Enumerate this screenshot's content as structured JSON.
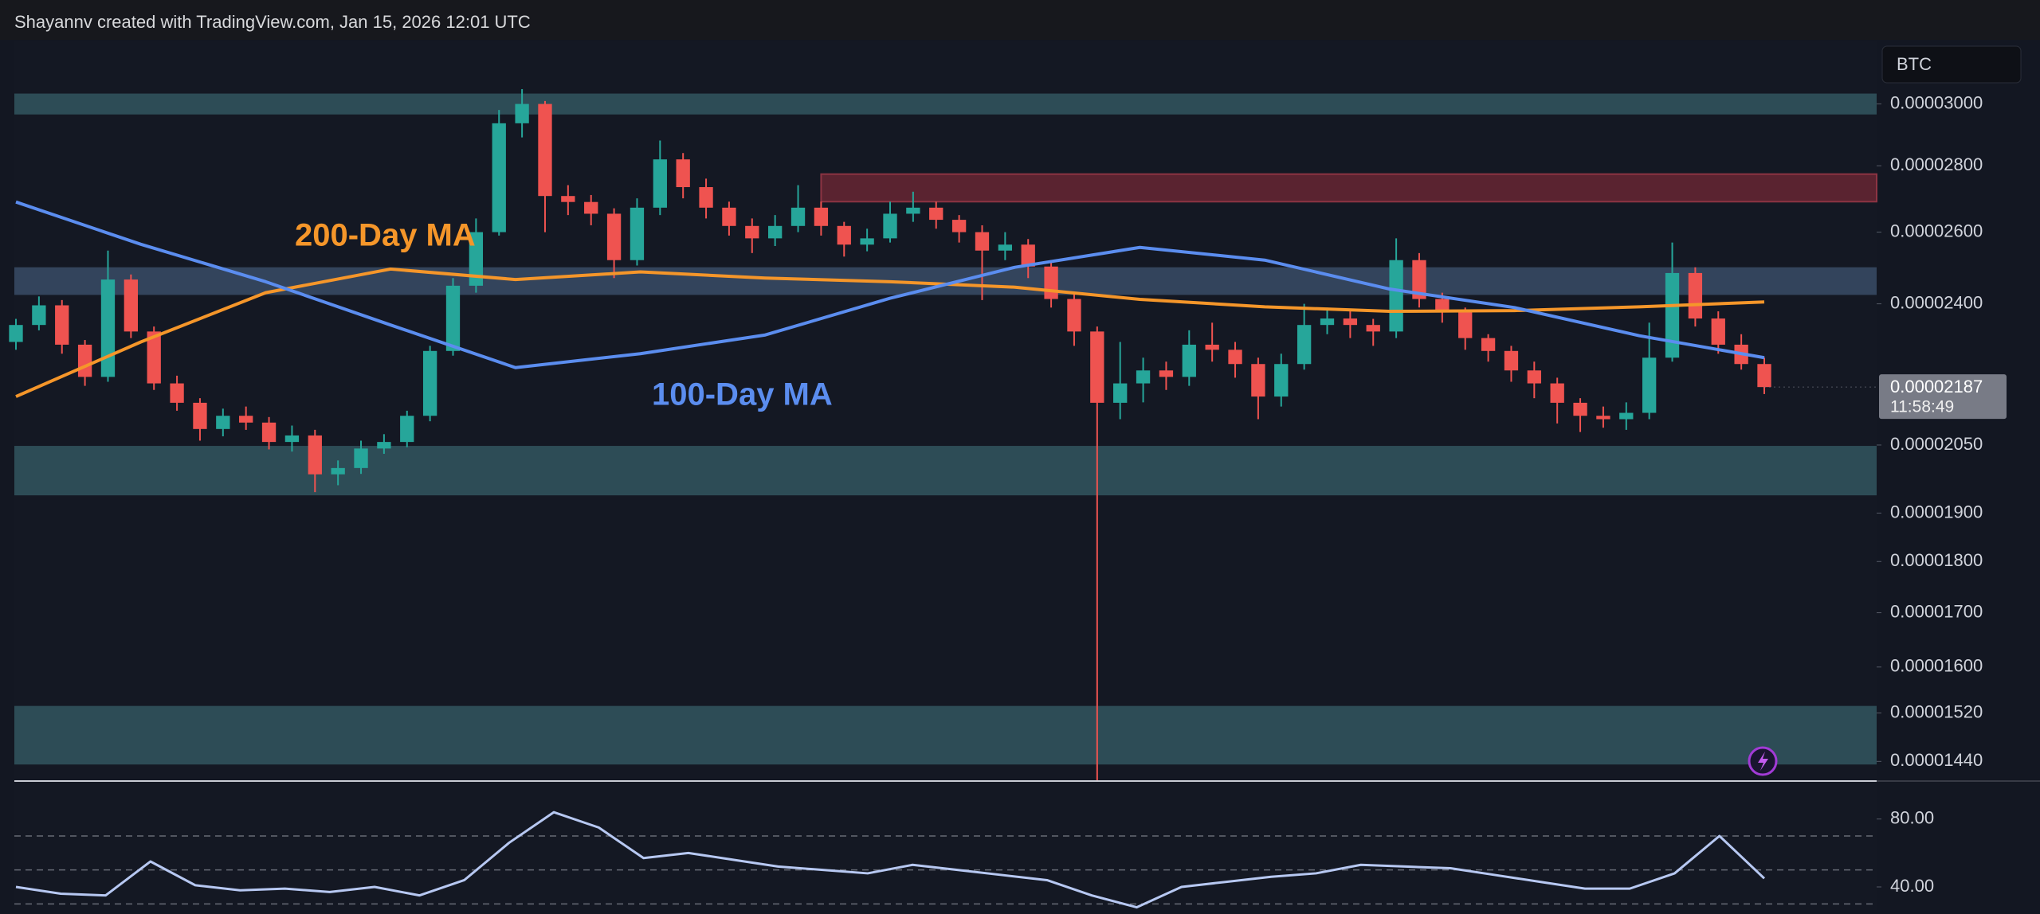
{
  "chart_data": {
    "type": "candlestick",
    "title": "Shayannv created with TradingView.com, Jan 15, 2026 12:01 UTC",
    "currency": "BTC",
    "log_scale": true,
    "ylim": [
      1.41e-05,
      3.217e-05
    ],
    "yticks": [
      {
        "value": 3e-05,
        "label": "0.00003000"
      },
      {
        "value": 2.8e-05,
        "label": "0.00002800"
      },
      {
        "value": 2.6e-05,
        "label": "0.00002600"
      },
      {
        "value": 2.4e-05,
        "label": "0.00002400"
      },
      {
        "value": 2.05e-05,
        "label": "0.00002050"
      },
      {
        "value": 1.9e-05,
        "label": "0.00001900"
      },
      {
        "value": 1.8e-05,
        "label": "0.00001800"
      },
      {
        "value": 1.7e-05,
        "label": "0.00001700"
      },
      {
        "value": 1.6e-05,
        "label": "0.00001600"
      },
      {
        "value": 1.52e-05,
        "label": "0.00001520"
      },
      {
        "value": 1.44e-05,
        "label": "0.00001440"
      }
    ],
    "up_color": "#26a69a",
    "down_color": "#ef5350",
    "open": [
      2.3e-05,
      2.344e-05,
      2.396e-05,
      2.293e-05,
      2.212e-05,
      2.466e-05,
      2.327e-05,
      2.196e-05,
      2.149e-05,
      2.087e-05,
      2.118e-05,
      2.102e-05,
      2.057e-05,
      2.072e-05,
      1.984e-05,
      1.998e-05,
      2.042e-05,
      2.057e-05,
      2.118e-05,
      2.277e-05,
      2.449e-05,
      2.6e-05,
      2.936e-05,
      3e-05,
      2.707e-05,
      2.689e-05,
      2.654e-05,
      2.52e-05,
      2.672e-05,
      2.82e-05,
      2.734e-05,
      2.672e-05,
      2.618e-05,
      2.582e-05,
      2.618e-05,
      2.672e-05,
      2.618e-05,
      2.564e-05,
      2.582e-05,
      2.654e-05,
      2.672e-05,
      2.636e-05,
      2.6e-05,
      2.547e-05,
      2.564e-05,
      2.502e-05,
      2.413e-05,
      2.327e-05,
      2.149e-05,
      2.196e-05,
      2.228e-05,
      2.212e-05,
      2.293e-05,
      2.28e-05,
      2.244e-05,
      2.164e-05,
      2.244e-05,
      2.344e-05,
      2.361e-05,
      2.344e-05,
      2.327e-05,
      2.52e-05,
      2.413e-05,
      2.378e-05,
      2.31e-05,
      2.277e-05,
      2.228e-05,
      2.196e-05,
      2.149e-05,
      2.118e-05,
      2.11e-05,
      2.125e-05,
      2.26e-05,
      2.484e-05,
      2.361e-05,
      2.293e-05,
      2.244e-05
    ],
    "high": [
      2.36e-05,
      2.42e-05,
      2.41e-05,
      2.305e-05,
      2.547e-05,
      2.48e-05,
      2.34e-05,
      2.215e-05,
      2.16e-05,
      2.135e-05,
      2.14e-05,
      2.115e-05,
      2.095e-05,
      2.085e-05,
      2.015e-05,
      2.06e-05,
      2.075e-05,
      2.13e-05,
      2.29e-05,
      2.47e-05,
      2.64e-05,
      2.98e-05,
      3.05e-05,
      3.01e-05,
      2.74e-05,
      2.71e-05,
      2.67e-05,
      2.7e-05,
      2.88e-05,
      2.84e-05,
      2.76e-05,
      2.69e-05,
      2.64e-05,
      2.65e-05,
      2.74e-05,
      2.69e-05,
      2.63e-05,
      2.61e-05,
      2.69e-05,
      2.72e-05,
      2.69e-05,
      2.65e-05,
      2.62e-05,
      2.6e-05,
      2.58e-05,
      2.52e-05,
      2.43e-05,
      2.34e-05,
      2.3e-05,
      2.26e-05,
      2.25e-05,
      2.33e-05,
      2.35e-05,
      2.3e-05,
      2.26e-05,
      2.27e-05,
      2.4e-05,
      2.39e-05,
      2.38e-05,
      2.36e-05,
      2.582e-05,
      2.54e-05,
      2.43e-05,
      2.39e-05,
      2.32e-05,
      2.29e-05,
      2.25e-05,
      2.21e-05,
      2.16e-05,
      2.14e-05,
      2.15e-05,
      2.35e-05,
      2.57e-05,
      2.5e-05,
      2.38e-05,
      2.32e-05,
      2.26e-05
    ],
    "low": [
      2.28e-05,
      2.33e-05,
      2.27e-05,
      2.19e-05,
      2.2e-05,
      2.31e-05,
      2.18e-05,
      2.13e-05,
      2.06e-05,
      2.07e-05,
      2.085e-05,
      2.04e-05,
      2.035e-05,
      1.945e-05,
      1.96e-05,
      1.985e-05,
      2.03e-05,
      2.045e-05,
      2.105e-05,
      2.265e-05,
      2.43e-05,
      2.59e-05,
      2.89e-05,
      2.6e-05,
      2.65e-05,
      2.62e-05,
      2.47e-05,
      2.505e-05,
      2.65e-05,
      2.7e-05,
      2.64e-05,
      2.59e-05,
      2.54e-05,
      2.56e-05,
      2.6e-05,
      2.59e-05,
      2.53e-05,
      2.545e-05,
      2.57e-05,
      2.63e-05,
      2.61e-05,
      2.57e-05,
      2.41e-05,
      2.52e-05,
      2.47e-05,
      2.39e-05,
      2.29e-05,
      1.41e-05,
      2.11e-05,
      2.15e-05,
      2.18e-05,
      2.19e-05,
      2.25e-05,
      2.21e-05,
      2.11e-05,
      2.14e-05,
      2.23e-05,
      2.32e-05,
      2.31e-05,
      2.29e-05,
      2.31e-05,
      2.39e-05,
      2.35e-05,
      2.28e-05,
      2.25e-05,
      2.2e-05,
      2.16e-05,
      2.1e-05,
      2.08e-05,
      2.09e-05,
      2.085e-05,
      2.11e-05,
      2.25e-05,
      2.34e-05,
      2.27e-05,
      2.23e-05,
      2.17e-05
    ],
    "close": [
      2.344e-05,
      2.396e-05,
      2.293e-05,
      2.212e-05,
      2.466e-05,
      2.327e-05,
      2.196e-05,
      2.149e-05,
      2.087e-05,
      2.118e-05,
      2.102e-05,
      2.057e-05,
      2.072e-05,
      1.984e-05,
      1.998e-05,
      2.042e-05,
      2.057e-05,
      2.118e-05,
      2.277e-05,
      2.449e-05,
      2.6e-05,
      2.936e-05,
      3e-05,
      2.707e-05,
      2.689e-05,
      2.654e-05,
      2.52e-05,
      2.672e-05,
      2.82e-05,
      2.734e-05,
      2.672e-05,
      2.618e-05,
      2.582e-05,
      2.618e-05,
      2.672e-05,
      2.618e-05,
      2.564e-05,
      2.582e-05,
      2.654e-05,
      2.672e-05,
      2.636e-05,
      2.6e-05,
      2.547e-05,
      2.564e-05,
      2.502e-05,
      2.413e-05,
      2.327e-05,
      2.149e-05,
      2.196e-05,
      2.228e-05,
      2.212e-05,
      2.293e-05,
      2.28e-05,
      2.244e-05,
      2.164e-05,
      2.244e-05,
      2.344e-05,
      2.361e-05,
      2.344e-05,
      2.327e-05,
      2.52e-05,
      2.413e-05,
      2.378e-05,
      2.31e-05,
      2.277e-05,
      2.228e-05,
      2.196e-05,
      2.149e-05,
      2.118e-05,
      2.11e-05,
      2.125e-05,
      2.26e-05,
      2.484e-05,
      2.361e-05,
      2.293e-05,
      2.244e-05,
      2.187e-05
    ],
    "zones": [
      {
        "from": 2.965e-05,
        "to": 3.035e-05,
        "color": "#2d4c56"
      },
      {
        "from": 2.424e-05,
        "to": 2.5e-05,
        "color": "#33445c"
      },
      {
        "from": 1.938e-05,
        "to": 2.048e-05,
        "color": "#2d4c56"
      },
      {
        "from": 1.435e-05,
        "to": 1.532e-05,
        "color": "#2d4c56"
      },
      {
        "from": 2.69e-05,
        "to": 2.774e-05,
        "color": "#5a2330",
        "from_index": 35
      }
    ],
    "moving_averages": [
      {
        "name": "200-Day MA",
        "color": "#f5962a",
        "values": [
          2.164e-05,
          2.3e-05,
          2.43e-05,
          2.495e-05,
          2.466e-05,
          2.487e-05,
          2.47e-05,
          2.46e-05,
          2.445e-05,
          2.412e-05,
          2.392e-05,
          2.38e-05,
          2.382e-05,
          2.392e-05,
          2.405e-05
        ]
      },
      {
        "name": "100-Day MA",
        "color": "#5b8def",
        "values": [
          2.689e-05,
          2.565e-05,
          2.46e-05,
          2.344e-05,
          2.235e-05,
          2.27e-05,
          2.318e-05,
          2.415e-05,
          2.5e-05,
          2.556e-05,
          2.52e-05,
          2.44e-05,
          2.39e-05,
          2.316e-05,
          2.26e-05
        ]
      }
    ],
    "price_tag": {
      "value": 2.187e-05,
      "label": "0.00002187",
      "countdown": "11:58:49"
    },
    "rsi": {
      "color": "#b7c8f2",
      "ylim": [
        26.4,
        101.9
      ],
      "yticks": [
        {
          "value": 80,
          "label": "80.00"
        },
        {
          "value": 40,
          "label": "40.00"
        }
      ],
      "levels": [
        70,
        50,
        30
      ],
      "values": [
        40,
        36,
        35,
        55,
        41,
        38,
        39,
        37,
        40,
        35,
        44,
        66,
        84,
        75,
        57,
        60,
        56,
        52,
        50,
        48,
        53,
        50,
        47,
        44,
        35,
        28,
        40,
        43,
        46,
        48,
        53,
        52,
        51,
        47,
        43,
        39,
        39,
        48,
        70,
        45
      ]
    }
  }
}
